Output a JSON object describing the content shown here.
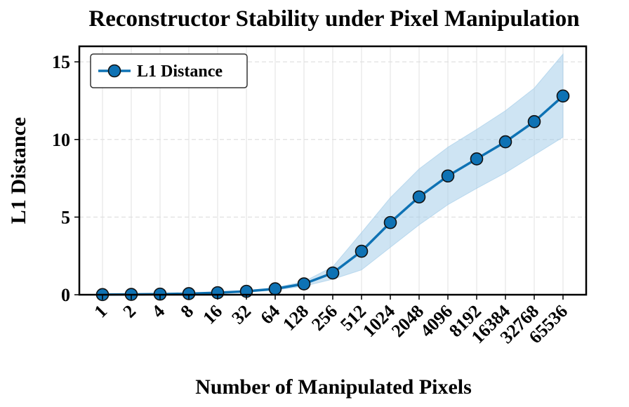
{
  "chart_data": {
    "type": "line",
    "title": "Reconstructor Stability under Pixel Manipulation",
    "xlabel": "Number of Manipulated Pixels",
    "ylabel": "L1 Distance",
    "categories": [
      "1",
      "2",
      "4",
      "8",
      "16",
      "32",
      "64",
      "128",
      "256",
      "512",
      "1024",
      "2048",
      "4096",
      "8192",
      "16384",
      "32768",
      "65536"
    ],
    "series": [
      {
        "name": "L1 Distance",
        "color": "#0e72b4",
        "band_color": "#9ecae8",
        "values": [
          0.01,
          0.02,
          0.04,
          0.07,
          0.13,
          0.22,
          0.38,
          0.7,
          1.4,
          2.8,
          4.65,
          6.3,
          7.65,
          8.75,
          9.85,
          11.15,
          12.8
        ],
        "lower": [
          0.0,
          0.01,
          0.03,
          0.05,
          0.1,
          0.17,
          0.3,
          0.55,
          1.0,
          1.6,
          3.05,
          4.5,
          5.8,
          6.85,
          7.85,
          9.0,
          10.15
        ],
        "upper": [
          0.02,
          0.03,
          0.05,
          0.09,
          0.16,
          0.27,
          0.46,
          0.85,
          1.8,
          4.0,
          6.25,
          8.1,
          9.5,
          10.65,
          11.85,
          13.3,
          15.5
        ]
      }
    ],
    "yticks": [
      0,
      5,
      10,
      15
    ],
    "ylim": [
      0,
      16
    ],
    "grid": true,
    "legend_position": "top-left"
  }
}
